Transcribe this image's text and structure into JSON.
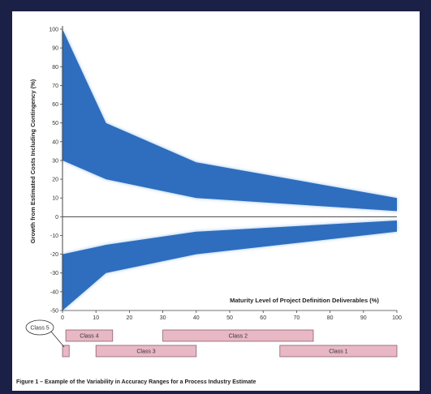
{
  "chart_data": {
    "type": "area",
    "title": "",
    "xlabel": "Maturity Level of Project Definition Deliverables (%)",
    "ylabel": "Growth from Estimated Costs Including Contingency (%)",
    "xlim": [
      0,
      100
    ],
    "ylim": [
      -50,
      100
    ],
    "x_ticks": [
      0,
      10,
      20,
      30,
      40,
      50,
      60,
      70,
      80,
      90,
      100
    ],
    "y_ticks": [
      100,
      90,
      80,
      70,
      60,
      50,
      40,
      30,
      20,
      10,
      0,
      -10,
      -20,
      -30,
      -40,
      -50
    ],
    "grid": false,
    "series": [
      {
        "kind": "upper_band",
        "x": [
          0,
          13,
          40,
          100
        ],
        "high": [
          100,
          50,
          29,
          10
        ],
        "low": [
          30,
          20,
          10,
          3
        ]
      },
      {
        "kind": "lower_band",
        "x": [
          0,
          13,
          40,
          100
        ],
        "high": [
          -20,
          -15,
          -8,
          -2
        ],
        "low": [
          -50,
          -30,
          -20,
          -8
        ]
      }
    ],
    "band_color": "#2f6ebe",
    "classes": [
      {
        "label": "Class 5",
        "start": 0,
        "end": 2,
        "row": 2,
        "callout": true
      },
      {
        "label": "Class 4",
        "start": 1,
        "end": 15,
        "row": 1
      },
      {
        "label": "Class 3",
        "start": 10,
        "end": 40,
        "row": 2
      },
      {
        "label": "Class 2",
        "start": 30,
        "end": 75,
        "row": 1
      },
      {
        "label": "Class 1",
        "start": 65,
        "end": 100,
        "row": 2
      }
    ],
    "class_bar_color": "#e8b8c4"
  },
  "caption": "Figure 1 – Example of the Variability in Accuracy Ranges for a Process Industry Estimate"
}
